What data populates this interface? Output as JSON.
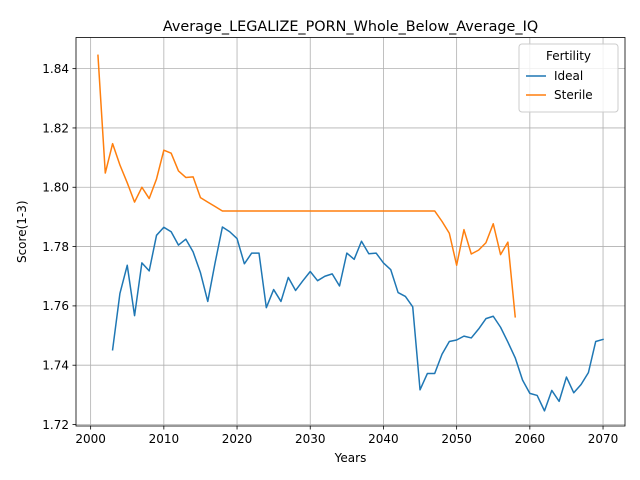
{
  "chart_data": {
    "type": "line",
    "title": "Average_LEGALIZE_PORN_Whole_Below_Average_IQ",
    "xlabel": "Years",
    "ylabel": "Score(1-3)",
    "xlim": [
      1998,
      2073
    ],
    "ylim": [
      1.7195,
      1.8505
    ],
    "xticks": [
      2000,
      2010,
      2020,
      2030,
      2040,
      2050,
      2060,
      2070
    ],
    "yticks": [
      1.72,
      1.74,
      1.76,
      1.78,
      1.8,
      1.82,
      1.84
    ],
    "ytick_labels": [
      "1.72",
      "1.74",
      "1.76",
      "1.78",
      "1.80",
      "1.82",
      "1.84"
    ],
    "grid": true,
    "legend": {
      "title": "Fertility",
      "position": "top-right"
    },
    "series": [
      {
        "name": "Ideal",
        "color": "#1f77b4",
        "x": [
          2003,
          2004,
          2005,
          2006,
          2007,
          2008,
          2009,
          2010,
          2011,
          2012,
          2013,
          2014,
          2015,
          2016,
          2017,
          2018,
          2019,
          2020,
          2021,
          2022,
          2023,
          2024,
          2025,
          2026,
          2027,
          2028,
          2029,
          2030,
          2031,
          2032,
          2033,
          2034,
          2035,
          2036,
          2037,
          2038,
          2039,
          2040,
          2041,
          2042,
          2043,
          2044,
          2045,
          2046,
          2047,
          2048,
          2049,
          2050,
          2051,
          2052,
          2053,
          2054,
          2055,
          2056,
          2057,
          2058,
          2059,
          2060,
          2061,
          2062,
          2063,
          2064,
          2065,
          2066,
          2067,
          2068,
          2069,
          2070
        ],
        "y": [
          1.7452,
          1.7642,
          1.7737,
          1.7567,
          1.7745,
          1.7718,
          1.7838,
          1.7865,
          1.785,
          1.7805,
          1.7825,
          1.7782,
          1.7712,
          1.7615,
          1.7745,
          1.7866,
          1.785,
          1.7827,
          1.7742,
          1.7778,
          1.7778,
          1.7594,
          1.7655,
          1.7615,
          1.7696,
          1.7652,
          1.7685,
          1.7716,
          1.7685,
          1.77,
          1.7708,
          1.7667,
          1.7778,
          1.7757,
          1.7818,
          1.7776,
          1.7778,
          1.7745,
          1.7722,
          1.7645,
          1.7632,
          1.7597,
          1.7317,
          1.7372,
          1.7372,
          1.7437,
          1.748,
          1.7485,
          1.7498,
          1.7492,
          1.7522,
          1.7557,
          1.7565,
          1.7528,
          1.7478,
          1.7425,
          1.735,
          1.7305,
          1.7298,
          1.7246,
          1.7315,
          1.7278,
          1.736,
          1.7307,
          1.7335,
          1.7375,
          1.748,
          1.7487
        ]
      },
      {
        "name": "Sterile",
        "color": "#ff7f0e",
        "x": [
          2001,
          2002,
          2003,
          2004,
          2005,
          2006,
          2007,
          2008,
          2009,
          2010,
          2011,
          2012,
          2013,
          2014,
          2015,
          2016,
          2017,
          2018,
          2019,
          2020,
          2021,
          2022,
          2023,
          2024,
          2025,
          2026,
          2027,
          2028,
          2029,
          2030,
          2031,
          2032,
          2033,
          2034,
          2035,
          2036,
          2037,
          2038,
          2039,
          2040,
          2041,
          2042,
          2043,
          2044,
          2045,
          2046,
          2047,
          2048,
          2049,
          2050,
          2051,
          2052,
          2053,
          2054,
          2055,
          2056,
          2057,
          2058
        ],
        "y": [
          1.8445,
          1.8048,
          1.8147,
          1.8075,
          1.8015,
          1.795,
          1.8,
          1.7962,
          1.8028,
          1.8125,
          1.8115,
          1.8055,
          1.8033,
          1.8035,
          1.7965,
          1.795,
          1.7935,
          1.792,
          1.792,
          1.792,
          1.792,
          1.792,
          1.792,
          1.792,
          1.792,
          1.792,
          1.792,
          1.792,
          1.792,
          1.792,
          1.792,
          1.792,
          1.792,
          1.792,
          1.792,
          1.792,
          1.792,
          1.792,
          1.792,
          1.792,
          1.792,
          1.792,
          1.792,
          1.792,
          1.792,
          1.792,
          1.792,
          1.7885,
          1.7845,
          1.7737,
          1.7857,
          1.7775,
          1.7788,
          1.7813,
          1.7877,
          1.7773,
          1.7815,
          1.7563
        ]
      }
    ]
  }
}
